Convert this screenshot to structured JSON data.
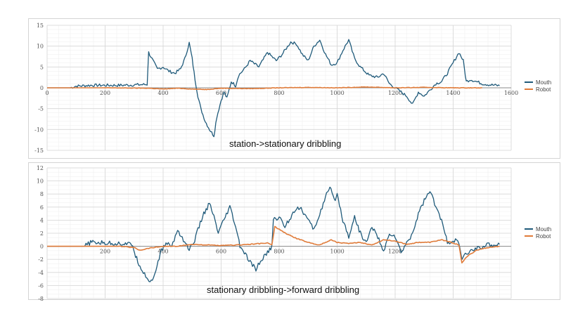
{
  "chart_data": [
    {
      "type": "line",
      "title": "",
      "annotation": "station->stationary dribbling",
      "xlabel": "",
      "ylabel": "",
      "xlim": [
        0,
        1600
      ],
      "ylim": [
        -15,
        15
      ],
      "xticks": [
        0,
        200,
        400,
        600,
        800,
        1000,
        1200,
        1400,
        1600
      ],
      "yticks": [
        15,
        10,
        5,
        0,
        -5,
        -10,
        -15
      ],
      "grid": true,
      "legend": "right",
      "series": [
        {
          "name": "Mouth",
          "color": "#1f5a7a",
          "points": [
            [
              0,
              0
            ],
            [
              80,
              0
            ],
            [
              100,
              0.4
            ],
            [
              150,
              0.6
            ],
            [
              200,
              0.6
            ],
            [
              250,
              0.6
            ],
            [
              300,
              0.7
            ],
            [
              345,
              0.8
            ],
            [
              350,
              8.5
            ],
            [
              365,
              6.5
            ],
            [
              380,
              4.5
            ],
            [
              400,
              5
            ],
            [
              420,
              4
            ],
            [
              440,
              3.5
            ],
            [
              460,
              4.5
            ],
            [
              475,
              7
            ],
            [
              490,
              10.8
            ],
            [
              500,
              7
            ],
            [
              510,
              2
            ],
            [
              520,
              -2
            ],
            [
              530,
              -5
            ],
            [
              545,
              -8
            ],
            [
              560,
              -10
            ],
            [
              575,
              -11.5
            ],
            [
              585,
              -7
            ],
            [
              600,
              -3
            ],
            [
              610,
              -1
            ],
            [
              620,
              -2.5
            ],
            [
              635,
              1.5
            ],
            [
              650,
              0.5
            ],
            [
              660,
              3
            ],
            [
              680,
              4.5
            ],
            [
              700,
              6.5
            ],
            [
              730,
              5
            ],
            [
              760,
              8.5
            ],
            [
              790,
              6.5
            ],
            [
              810,
              8
            ],
            [
              840,
              11
            ],
            [
              860,
              10.5
            ],
            [
              880,
              8
            ],
            [
              900,
              6.5
            ],
            [
              920,
              10
            ],
            [
              940,
              11.5
            ],
            [
              960,
              8
            ],
            [
              980,
              5.5
            ],
            [
              1000,
              6
            ],
            [
              1020,
              9
            ],
            [
              1040,
              11.5
            ],
            [
              1060,
              7
            ],
            [
              1080,
              5
            ],
            [
              1110,
              3
            ],
            [
              1140,
              2.5
            ],
            [
              1160,
              3.5
            ],
            [
              1180,
              1
            ],
            [
              1200,
              0
            ],
            [
              1220,
              -1
            ],
            [
              1240,
              -2
            ],
            [
              1260,
              -4
            ],
            [
              1280,
              -1
            ],
            [
              1300,
              -2
            ],
            [
              1320,
              -0.5
            ],
            [
              1340,
              1
            ],
            [
              1360,
              1.5
            ],
            [
              1380,
              3.5
            ],
            [
              1400,
              6
            ],
            [
              1420,
              8.5
            ],
            [
              1435,
              6.5
            ],
            [
              1445,
              1.5
            ],
            [
              1460,
              2
            ],
            [
              1480,
              1.5
            ],
            [
              1500,
              1
            ],
            [
              1530,
              0.7
            ],
            [
              1560,
              0.5
            ]
          ]
        },
        {
          "name": "Robot",
          "color": "#e07b39",
          "points": [
            [
              0,
              0
            ],
            [
              200,
              0
            ],
            [
              350,
              -0.1
            ],
            [
              400,
              -0.3
            ],
            [
              450,
              -0.1
            ],
            [
              500,
              -0.3
            ],
            [
              550,
              -0.4
            ],
            [
              600,
              -0.1
            ],
            [
              700,
              -0.2
            ],
            [
              800,
              0
            ],
            [
              900,
              0.1
            ],
            [
              1000,
              0
            ],
            [
              1100,
              0.2
            ],
            [
              1200,
              0
            ],
            [
              1300,
              0.1
            ],
            [
              1400,
              0
            ],
            [
              1500,
              0
            ]
          ]
        }
      ]
    },
    {
      "type": "line",
      "title": "",
      "annotation": "stationary dribbling->forward dribbling",
      "xlabel": "",
      "ylabel": "",
      "xlim": [
        0,
        1600
      ],
      "ylim": [
        -8,
        12
      ],
      "xticks": [
        200,
        400,
        600,
        800,
        1000,
        1200
      ],
      "yticks": [
        12,
        10,
        8,
        6,
        4,
        2,
        0,
        -2,
        -4,
        -6,
        -8
      ],
      "grid": true,
      "legend": "right",
      "series": [
        {
          "name": "Mouth",
          "color": "#1f5a7a",
          "points": [
            [
              0,
              0
            ],
            [
              130,
              0
            ],
            [
              150,
              0.6
            ],
            [
              200,
              0.5
            ],
            [
              270,
              0.4
            ],
            [
              295,
              0.2
            ],
            [
              305,
              -1.5
            ],
            [
              320,
              -3
            ],
            [
              340,
              -4.5
            ],
            [
              355,
              -5.5
            ],
            [
              375,
              -4
            ],
            [
              390,
              -1
            ],
            [
              410,
              0.5
            ],
            [
              430,
              0
            ],
            [
              450,
              2.5
            ],
            [
              470,
              1
            ],
            [
              490,
              -0.5
            ],
            [
              505,
              0.5
            ],
            [
              520,
              2.5
            ],
            [
              540,
              5
            ],
            [
              560,
              6.5
            ],
            [
              575,
              4.5
            ],
            [
              590,
              2
            ],
            [
              610,
              4
            ],
            [
              630,
              6
            ],
            [
              650,
              3
            ],
            [
              665,
              0
            ],
            [
              680,
              -1
            ],
            [
              700,
              -2.5
            ],
            [
              720,
              -3.5
            ],
            [
              740,
              -2
            ],
            [
              760,
              -1
            ],
            [
              775,
              0
            ],
            [
              780,
              4
            ],
            [
              800,
              4.5
            ],
            [
              820,
              3
            ],
            [
              840,
              4.5
            ],
            [
              860,
              6
            ],
            [
              880,
              5.5
            ],
            [
              900,
              4
            ],
            [
              920,
              2.5
            ],
            [
              940,
              5
            ],
            [
              960,
              7.5
            ],
            [
              975,
              9
            ],
            [
              990,
              7
            ],
            [
              1000,
              8
            ],
            [
              1020,
              4
            ],
            [
              1040,
              1.5
            ],
            [
              1060,
              4.5
            ],
            [
              1080,
              2
            ],
            [
              1100,
              0.5
            ],
            [
              1120,
              3
            ],
            [
              1140,
              1.5
            ],
            [
              1160,
              -1
            ],
            [
              1180,
              2
            ],
            [
              1200,
              1.5
            ],
            [
              1220,
              -1
            ],
            [
              1240,
              0.5
            ],
            [
              1260,
              2
            ],
            [
              1280,
              5
            ],
            [
              1300,
              7
            ],
            [
              1320,
              8.5
            ],
            [
              1340,
              6
            ],
            [
              1360,
              4
            ],
            [
              1380,
              0.5
            ],
            [
              1400,
              1
            ],
            [
              1420,
              0.5
            ],
            [
              1430,
              -2
            ],
            [
              1450,
              -1
            ],
            [
              1480,
              -0.3
            ],
            [
              1520,
              0.2
            ],
            [
              1560,
              0.3
            ]
          ]
        },
        {
          "name": "Robot",
          "color": "#e07b39",
          "points": [
            [
              0,
              0
            ],
            [
              250,
              0
            ],
            [
              300,
              -0.2
            ],
            [
              320,
              -0.6
            ],
            [
              350,
              -0.3
            ],
            [
              400,
              0
            ],
            [
              450,
              0
            ],
            [
              500,
              0.3
            ],
            [
              600,
              0.1
            ],
            [
              700,
              0.3
            ],
            [
              760,
              0.5
            ],
            [
              775,
              0.2
            ],
            [
              785,
              3
            ],
            [
              800,
              2.6
            ],
            [
              830,
              1.8
            ],
            [
              860,
              1.2
            ],
            [
              900,
              0.6
            ],
            [
              940,
              0.2
            ],
            [
              980,
              1
            ],
            [
              1000,
              0.6
            ],
            [
              1040,
              0.4
            ],
            [
              1080,
              0.6
            ],
            [
              1120,
              0.2
            ],
            [
              1160,
              1
            ],
            [
              1200,
              0.8
            ],
            [
              1240,
              0.3
            ],
            [
              1280,
              0.6
            ],
            [
              1320,
              0.6
            ],
            [
              1360,
              1
            ],
            [
              1400,
              0.5
            ],
            [
              1420,
              0.2
            ],
            [
              1430,
              -2.5
            ],
            [
              1450,
              -1.5
            ],
            [
              1480,
              -0.6
            ],
            [
              1520,
              -0.2
            ],
            [
              1560,
              0
            ]
          ]
        }
      ]
    }
  ]
}
